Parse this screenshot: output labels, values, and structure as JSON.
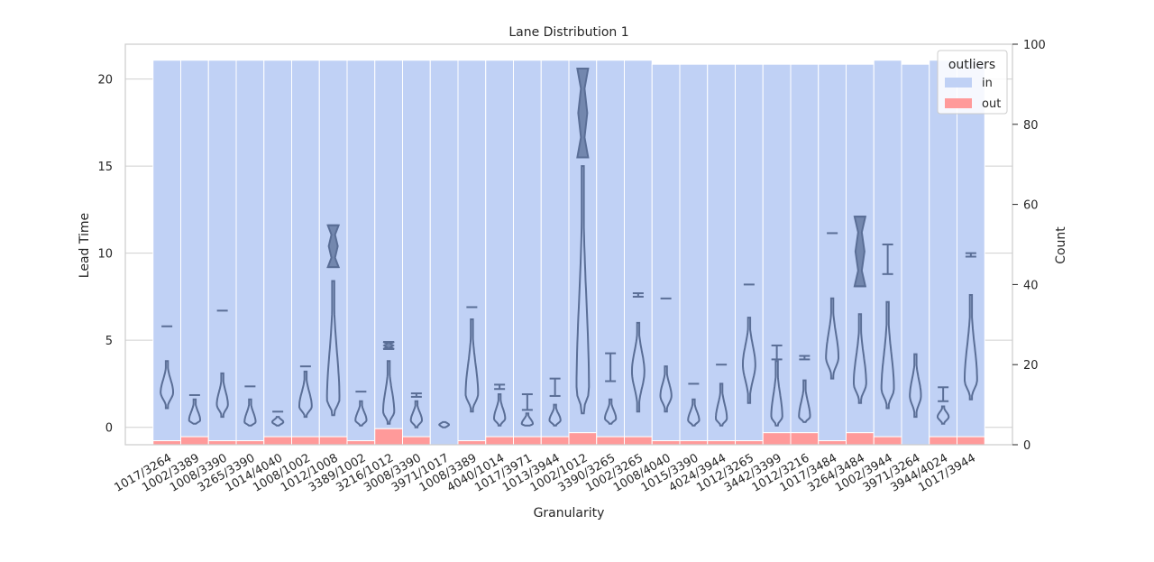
{
  "chart_data": {
    "type": "bar",
    "title": "Lane Distribution 1",
    "xlabel": "Granularity",
    "ylabel_left": "Lead Time",
    "ylabel_right": "Count",
    "ylim_left": [
      -1,
      22
    ],
    "ylim_right": [
      0,
      100
    ],
    "yticks_left": [
      0,
      5,
      10,
      15,
      20
    ],
    "yticks_right": [
      0,
      20,
      40,
      60,
      80,
      100
    ],
    "grid": true,
    "legend_position": "top-right",
    "legend": {
      "title": "outliers",
      "entries": [
        {
          "label": "in",
          "color": "#c0d1f5"
        },
        {
          "label": "out",
          "color": "#ff9a9a"
        }
      ]
    },
    "colors": {
      "in": "#c0d1f5",
      "out": "#ff9a9a",
      "violin": "#5a6e96"
    },
    "categories": [
      "1017/3264",
      "1002/3389",
      "1008/3390",
      "3265/3390",
      "1014/4040",
      "1008/1002",
      "1012/1008",
      "3389/1002",
      "3216/1012",
      "3008/3390",
      "3971/1017",
      "1008/3389",
      "4040/1014",
      "1017/3971",
      "1013/3944",
      "1002/1012",
      "3390/3265",
      "1002/3265",
      "1008/4040",
      "1015/3390",
      "4024/3944",
      "1012/3265",
      "3442/3399",
      "1012/3216",
      "1017/3484",
      "3264/3484",
      "1002/3944",
      "3971/3264",
      "3944/4024",
      "1017/3944"
    ],
    "series": [
      {
        "name": "in",
        "values": [
          95,
          94,
          95,
          95,
          94,
          94,
          94,
          95,
          92,
          94,
          96,
          95,
          94,
          94,
          94,
          93,
          94,
          94,
          94,
          94,
          94,
          94,
          92,
          92,
          94,
          92,
          94,
          95,
          94,
          94
        ]
      },
      {
        "name": "out",
        "values": [
          1,
          2,
          1,
          1,
          2,
          2,
          2,
          1,
          4,
          2,
          0,
          1,
          2,
          2,
          2,
          3,
          2,
          2,
          1,
          1,
          1,
          1,
          3,
          3,
          1,
          3,
          2,
          0,
          2,
          2
        ]
      }
    ],
    "violins": [
      {
        "min": 1.1,
        "max": 3.8,
        "peak": 2.0,
        "w": 0.45
      },
      {
        "min": 0.2,
        "max": 1.6,
        "peak": 0.4,
        "w": 0.4
      },
      {
        "min": 0.6,
        "max": 3.1,
        "peak": 1.3,
        "w": 0.4
      },
      {
        "min": 0.1,
        "max": 1.6,
        "peak": 0.3,
        "w": 0.4
      },
      {
        "min": 0.1,
        "max": 0.6,
        "peak": 0.3,
        "w": 0.4
      },
      {
        "min": 0.6,
        "max": 3.2,
        "peak": 1.2,
        "w": 0.45
      },
      {
        "min": 0.7,
        "max": 8.4,
        "peak": 1.6,
        "w": 0.45
      },
      {
        "min": 0.1,
        "max": 1.5,
        "peak": 0.4,
        "w": 0.4
      },
      {
        "min": 0.2,
        "max": 3.8,
        "peak": 0.9,
        "w": 0.4
      },
      {
        "min": 0.0,
        "max": 1.5,
        "peak": 0.4,
        "w": 0.4
      },
      {
        "min": 0.0,
        "max": 0.3,
        "peak": 0.15,
        "w": 0.35
      },
      {
        "min": 0.9,
        "max": 6.2,
        "peak": 1.9,
        "w": 0.45
      },
      {
        "min": 0.1,
        "max": 1.9,
        "peak": 0.5,
        "w": 0.4
      },
      {
        "min": 0.1,
        "max": 0.8,
        "peak": 0.2,
        "w": 0.4
      },
      {
        "min": 0.1,
        "max": 1.3,
        "peak": 0.4,
        "w": 0.4
      },
      {
        "min": 0.8,
        "max": 15.0,
        "peak": 2.1,
        "w": 0.45
      },
      {
        "min": 0.2,
        "max": 1.6,
        "peak": 0.5,
        "w": 0.4
      },
      {
        "min": 0.9,
        "max": 6.0,
        "peak": 3.2,
        "w": 0.45
      },
      {
        "min": 0.9,
        "max": 3.5,
        "peak": 1.8,
        "w": 0.4
      },
      {
        "min": 0.1,
        "max": 1.6,
        "peak": 0.4,
        "w": 0.4
      },
      {
        "min": 0.1,
        "max": 2.5,
        "peak": 0.5,
        "w": 0.4
      },
      {
        "min": 1.4,
        "max": 6.3,
        "peak": 3.6,
        "w": 0.45
      },
      {
        "min": 0.1,
        "max": 3.8,
        "peak": 0.6,
        "w": 0.4
      },
      {
        "min": 0.3,
        "max": 2.7,
        "peak": 0.6,
        "w": 0.4
      },
      {
        "min": 2.8,
        "max": 7.4,
        "peak": 4.0,
        "w": 0.45
      },
      {
        "min": 1.4,
        "max": 6.5,
        "peak": 2.5,
        "w": 0.45
      },
      {
        "min": 1.1,
        "max": 7.2,
        "peak": 2.2,
        "w": 0.45
      },
      {
        "min": 0.6,
        "max": 4.2,
        "peak": 1.8,
        "w": 0.4
      },
      {
        "min": 0.2,
        "max": 1.2,
        "peak": 0.6,
        "w": 0.4
      },
      {
        "min": 1.6,
        "max": 7.6,
        "peak": 2.7,
        "w": 0.45
      }
    ],
    "markers": [
      {
        "lo": 5.8,
        "hi": 5.8
      },
      {
        "lo": 1.85,
        "hi": 1.85
      },
      {
        "lo": 6.7,
        "hi": 6.7
      },
      {
        "lo": 2.35,
        "hi": 2.35
      },
      {
        "lo": 0.9,
        "hi": 0.9
      },
      {
        "lo": 3.5,
        "hi": 3.5
      },
      {
        "lo": 9.2,
        "hi": 11.6,
        "shape": "violin"
      },
      {
        "lo": 2.05,
        "hi": 2.05
      },
      {
        "lo": 4.5,
        "hi": 4.9,
        "shape": "violin"
      },
      {
        "lo": 1.75,
        "hi": 1.95
      },
      {
        "lo": null,
        "hi": null
      },
      {
        "lo": 6.9,
        "hi": 6.9
      },
      {
        "lo": 2.2,
        "hi": 2.45
      },
      {
        "lo": 1.0,
        "hi": 1.9
      },
      {
        "lo": 1.8,
        "hi": 2.8
      },
      {
        "lo": 15.5,
        "hi": 20.6,
        "shape": "violin"
      },
      {
        "lo": 2.65,
        "hi": 4.25
      },
      {
        "lo": 7.5,
        "hi": 7.7
      },
      {
        "lo": 7.4,
        "hi": 7.4
      },
      {
        "lo": 2.5,
        "hi": 2.5
      },
      {
        "lo": 3.6,
        "hi": 3.6
      },
      {
        "lo": 8.2,
        "hi": 8.2
      },
      {
        "lo": 3.9,
        "hi": 4.7
      },
      {
        "lo": 3.9,
        "hi": 4.1
      },
      {
        "lo": 11.15,
        "hi": 11.15
      },
      {
        "lo": 8.1,
        "hi": 12.1,
        "shape": "violin"
      },
      {
        "lo": 8.8,
        "hi": 10.5
      },
      {
        "lo": null,
        "hi": null
      },
      {
        "lo": 1.5,
        "hi": 2.3
      },
      {
        "lo": 9.8,
        "hi": 10.0
      }
    ]
  }
}
